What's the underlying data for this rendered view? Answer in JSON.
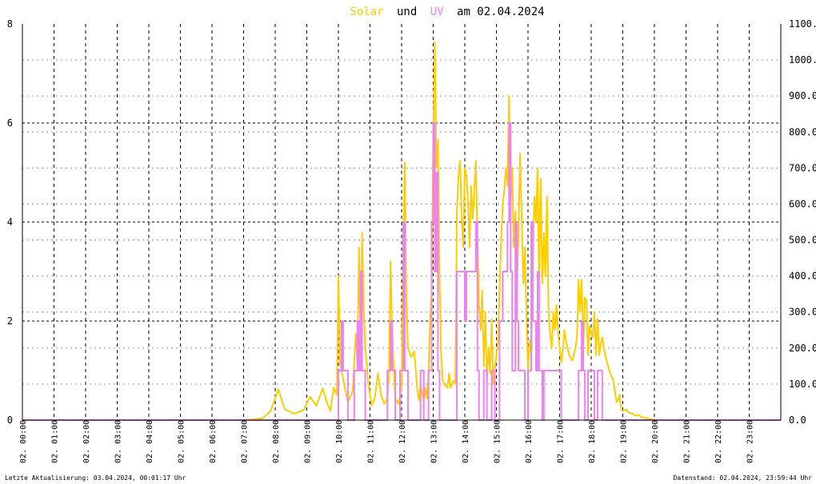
{
  "title": {
    "word1": "Solar",
    "word2": "und",
    "word3": "UV",
    "word4": "am 02.04.2024",
    "color_solar": "#ffcc00",
    "color_uv": "#ee82ee",
    "color_text": "#000000"
  },
  "footer": {
    "left": "Letzte Aktualisierung: 03.04.2024, 00:01:17 Uhr",
    "right": "Datenstand: 02.04.2024, 23:59:44 Uhr"
  },
  "chart_data": {
    "type": "line",
    "grid": true,
    "x_unit": "hour",
    "xlim": [
      0,
      24
    ],
    "x_ticks": [
      "02. 00:00",
      "02. 01:00",
      "02. 02:00",
      "02. 03:00",
      "02. 04:00",
      "02. 05:00",
      "02. 06:00",
      "02. 07:00",
      "02. 08:00",
      "02. 09:00",
      "02. 10:00",
      "02. 11:00",
      "02. 12:00",
      "02. 13:00",
      "02. 14:00",
      "02. 15:00",
      "02. 16:00",
      "02. 17:00",
      "02. 18:00",
      "02. 19:00",
      "02. 20:00",
      "02. 21:00",
      "02. 22:00",
      "02. 23:00"
    ],
    "y_left": {
      "lim": [
        0,
        8
      ],
      "ticks": [
        "0",
        "2",
        "4",
        "6",
        "8"
      ]
    },
    "y_right": {
      "lim": [
        0,
        1100
      ],
      "ticks": [
        "0.0",
        "100.0",
        "200.0",
        "300.0",
        "400.0",
        "500.0",
        "600.0",
        "700.0",
        "800.0",
        "900.0",
        "1000.0",
        "1100.0"
      ]
    },
    "series": [
      {
        "name": "Solar",
        "axis": "right",
        "color": "#ffcc00",
        "points": [
          [
            0,
            0
          ],
          [
            7.0,
            0
          ],
          [
            7.3,
            2
          ],
          [
            7.6,
            5
          ],
          [
            7.85,
            25
          ],
          [
            8.1,
            85
          ],
          [
            8.3,
            30
          ],
          [
            8.6,
            18
          ],
          [
            8.9,
            28
          ],
          [
            9.1,
            65
          ],
          [
            9.3,
            40
          ],
          [
            9.5,
            88
          ],
          [
            9.65,
            45
          ],
          [
            9.75,
            25
          ],
          [
            9.85,
            90
          ],
          [
            9.95,
            70
          ],
          [
            10.0,
            400
          ],
          [
            10.05,
            160
          ],
          [
            10.2,
            90
          ],
          [
            10.3,
            50
          ],
          [
            10.45,
            80
          ],
          [
            10.55,
            240
          ],
          [
            10.6,
            160
          ],
          [
            10.65,
            480
          ],
          [
            10.7,
            220
          ],
          [
            10.75,
            520
          ],
          [
            10.8,
            320
          ],
          [
            10.85,
            200
          ],
          [
            10.95,
            100
          ],
          [
            11.05,
            40
          ],
          [
            11.15,
            60
          ],
          [
            11.25,
            130
          ],
          [
            11.35,
            70
          ],
          [
            11.45,
            45
          ],
          [
            11.55,
            60
          ],
          [
            11.6,
            120
          ],
          [
            11.65,
            440
          ],
          [
            11.7,
            250
          ],
          [
            11.75,
            150
          ],
          [
            11.8,
            60
          ],
          [
            11.9,
            45
          ],
          [
            12.0,
            90
          ],
          [
            12.05,
            450
          ],
          [
            12.1,
            715
          ],
          [
            12.15,
            350
          ],
          [
            12.2,
            200
          ],
          [
            12.3,
            175
          ],
          [
            12.4,
            190
          ],
          [
            12.5,
            80
          ],
          [
            12.55,
            55
          ],
          [
            12.6,
            95
          ],
          [
            12.7,
            55
          ],
          [
            12.75,
            90
          ],
          [
            12.8,
            60
          ],
          [
            12.85,
            120
          ],
          [
            12.9,
            280
          ],
          [
            12.95,
            350
          ],
          [
            13.0,
            760
          ],
          [
            13.05,
            1050
          ],
          [
            13.1,
            700
          ],
          [
            13.15,
            780
          ],
          [
            13.2,
            400
          ],
          [
            13.25,
            180
          ],
          [
            13.3,
            110
          ],
          [
            13.35,
            100
          ],
          [
            13.45,
            90
          ],
          [
            13.5,
            130
          ],
          [
            13.55,
            90
          ],
          [
            13.65,
            110
          ],
          [
            13.7,
            100
          ],
          [
            13.75,
            580
          ],
          [
            13.8,
            680
          ],
          [
            13.85,
            720
          ],
          [
            13.9,
            560
          ],
          [
            13.95,
            480
          ],
          [
            14.0,
            700
          ],
          [
            14.05,
            680
          ],
          [
            14.1,
            600
          ],
          [
            14.15,
            480
          ],
          [
            14.2,
            650
          ],
          [
            14.25,
            560
          ],
          [
            14.3,
            640
          ],
          [
            14.35,
            720
          ],
          [
            14.4,
            500
          ],
          [
            14.45,
            320
          ],
          [
            14.5,
            250
          ],
          [
            14.55,
            360
          ],
          [
            14.6,
            150
          ],
          [
            14.65,
            300
          ],
          [
            14.7,
            100
          ],
          [
            14.75,
            200
          ],
          [
            14.8,
            130
          ],
          [
            14.85,
            280
          ],
          [
            14.9,
            100
          ],
          [
            15.0,
            180
          ],
          [
            15.05,
            220
          ],
          [
            15.1,
            360
          ],
          [
            15.15,
            500
          ],
          [
            15.2,
            600
          ],
          [
            15.25,
            640
          ],
          [
            15.3,
            700
          ],
          [
            15.35,
            650
          ],
          [
            15.4,
            900
          ],
          [
            15.45,
            600
          ],
          [
            15.5,
            700
          ],
          [
            15.55,
            480
          ],
          [
            15.6,
            580
          ],
          [
            15.65,
            360
          ],
          [
            15.7,
            520
          ],
          [
            15.75,
            740
          ],
          [
            15.8,
            560
          ],
          [
            15.85,
            380
          ],
          [
            15.9,
            480
          ],
          [
            15.95,
            300
          ],
          [
            16.0,
            140
          ],
          [
            16.05,
            220
          ],
          [
            16.1,
            180
          ],
          [
            16.15,
            420
          ],
          [
            16.2,
            620
          ],
          [
            16.25,
            550
          ],
          [
            16.3,
            700
          ],
          [
            16.35,
            400
          ],
          [
            16.4,
            670
          ],
          [
            16.45,
            380
          ],
          [
            16.5,
            520
          ],
          [
            16.55,
            400
          ],
          [
            16.6,
            620
          ],
          [
            16.65,
            300
          ],
          [
            16.7,
            240
          ],
          [
            16.75,
            200
          ],
          [
            16.8,
            300
          ],
          [
            16.85,
            250
          ],
          [
            16.9,
            320
          ],
          [
            16.95,
            250
          ],
          [
            17.0,
            200
          ],
          [
            17.05,
            160
          ],
          [
            17.1,
            190
          ],
          [
            17.15,
            250
          ],
          [
            17.2,
            220
          ],
          [
            17.3,
            180
          ],
          [
            17.4,
            165
          ],
          [
            17.5,
            200
          ],
          [
            17.55,
            230
          ],
          [
            17.6,
            390
          ],
          [
            17.65,
            300
          ],
          [
            17.7,
            390
          ],
          [
            17.75,
            200
          ],
          [
            17.8,
            340
          ],
          [
            17.85,
            330
          ],
          [
            17.9,
            180
          ],
          [
            17.95,
            260
          ],
          [
            18.0,
            240
          ],
          [
            18.05,
            230
          ],
          [
            18.1,
            300
          ],
          [
            18.15,
            180
          ],
          [
            18.2,
            280
          ],
          [
            18.25,
            180
          ],
          [
            18.3,
            210
          ],
          [
            18.35,
            230
          ],
          [
            18.4,
            200
          ],
          [
            18.5,
            160
          ],
          [
            18.6,
            130
          ],
          [
            18.7,
            110
          ],
          [
            18.75,
            80
          ],
          [
            18.8,
            50
          ],
          [
            18.85,
            55
          ],
          [
            18.9,
            70
          ],
          [
            18.95,
            30
          ],
          [
            19.0,
            25
          ],
          [
            19.1,
            30
          ],
          [
            19.2,
            20
          ],
          [
            19.3,
            18
          ],
          [
            19.4,
            12
          ],
          [
            19.5,
            15
          ],
          [
            19.6,
            8
          ],
          [
            19.8,
            4
          ],
          [
            20.0,
            1
          ],
          [
            20.1,
            0
          ],
          [
            24,
            0
          ]
        ]
      },
      {
        "name": "UV",
        "axis": "left",
        "color": "#ee82ee",
        "points": [
          [
            0,
            0
          ],
          [
            10.0,
            0
          ],
          [
            10.0,
            1
          ],
          [
            10.1,
            1
          ],
          [
            10.1,
            2
          ],
          [
            10.15,
            2
          ],
          [
            10.15,
            1
          ],
          [
            10.3,
            1
          ],
          [
            10.3,
            0
          ],
          [
            10.5,
            0
          ],
          [
            10.5,
            1
          ],
          [
            10.6,
            1
          ],
          [
            10.6,
            2
          ],
          [
            10.65,
            2
          ],
          [
            10.65,
            1
          ],
          [
            10.7,
            1
          ],
          [
            10.7,
            3
          ],
          [
            10.75,
            3
          ],
          [
            10.75,
            1
          ],
          [
            10.85,
            1
          ],
          [
            10.85,
            0
          ],
          [
            11.55,
            0
          ],
          [
            11.55,
            1
          ],
          [
            11.65,
            1
          ],
          [
            11.65,
            2
          ],
          [
            11.7,
            2
          ],
          [
            11.7,
            1
          ],
          [
            11.8,
            1
          ],
          [
            11.8,
            0
          ],
          [
            11.95,
            0
          ],
          [
            11.95,
            1
          ],
          [
            12.05,
            1
          ],
          [
            12.05,
            4
          ],
          [
            12.1,
            4
          ],
          [
            12.1,
            1
          ],
          [
            12.2,
            1
          ],
          [
            12.2,
            0
          ],
          [
            12.6,
            0
          ],
          [
            12.6,
            1
          ],
          [
            12.7,
            1
          ],
          [
            12.7,
            0
          ],
          [
            12.85,
            0
          ],
          [
            12.85,
            1
          ],
          [
            12.95,
            1
          ],
          [
            12.95,
            4
          ],
          [
            13.0,
            4
          ],
          [
            13.0,
            6
          ],
          [
            13.05,
            6
          ],
          [
            13.05,
            3
          ],
          [
            13.1,
            3
          ],
          [
            13.1,
            5
          ],
          [
            13.15,
            5
          ],
          [
            13.15,
            1
          ],
          [
            13.2,
            1
          ],
          [
            13.2,
            0
          ],
          [
            13.75,
            0
          ],
          [
            13.75,
            3
          ],
          [
            14.0,
            3
          ],
          [
            14.0,
            2
          ],
          [
            14.05,
            2
          ],
          [
            14.05,
            3
          ],
          [
            14.35,
            3
          ],
          [
            14.35,
            4
          ],
          [
            14.4,
            4
          ],
          [
            14.4,
            1
          ],
          [
            14.45,
            1
          ],
          [
            14.45,
            0
          ],
          [
            14.6,
            0
          ],
          [
            14.6,
            1
          ],
          [
            14.7,
            1
          ],
          [
            14.7,
            0
          ],
          [
            14.85,
            0
          ],
          [
            14.85,
            1
          ],
          [
            14.95,
            1
          ],
          [
            14.95,
            0
          ],
          [
            15.1,
            0
          ],
          [
            15.1,
            2
          ],
          [
            15.2,
            2
          ],
          [
            15.2,
            3
          ],
          [
            15.35,
            3
          ],
          [
            15.35,
            4
          ],
          [
            15.4,
            4
          ],
          [
            15.4,
            6
          ],
          [
            15.45,
            6
          ],
          [
            15.45,
            3
          ],
          [
            15.5,
            3
          ],
          [
            15.5,
            1
          ],
          [
            15.6,
            1
          ],
          [
            15.6,
            4
          ],
          [
            15.65,
            4
          ],
          [
            15.65,
            2
          ],
          [
            15.7,
            2
          ],
          [
            15.7,
            1
          ],
          [
            15.9,
            1
          ],
          [
            15.9,
            0
          ],
          [
            16.0,
            0
          ],
          [
            16.0,
            1
          ],
          [
            16.1,
            1
          ],
          [
            16.1,
            4
          ],
          [
            16.15,
            4
          ],
          [
            16.15,
            2
          ],
          [
            16.25,
            2
          ],
          [
            16.25,
            1
          ],
          [
            16.3,
            1
          ],
          [
            16.3,
            3
          ],
          [
            16.35,
            3
          ],
          [
            16.35,
            1
          ],
          [
            16.45,
            1
          ],
          [
            16.45,
            0
          ],
          [
            16.5,
            0
          ],
          [
            16.5,
            1
          ],
          [
            17.05,
            1
          ],
          [
            17.05,
            0
          ],
          [
            17.6,
            0
          ],
          [
            17.6,
            1
          ],
          [
            17.7,
            1
          ],
          [
            17.7,
            2
          ],
          [
            17.75,
            2
          ],
          [
            17.75,
            1
          ],
          [
            17.8,
            1
          ],
          [
            17.8,
            0
          ],
          [
            17.9,
            0
          ],
          [
            17.9,
            1
          ],
          [
            18.1,
            1
          ],
          [
            18.1,
            0
          ],
          [
            18.2,
            0
          ],
          [
            18.2,
            1
          ],
          [
            18.35,
            1
          ],
          [
            18.35,
            0
          ],
          [
            24,
            0
          ]
        ]
      }
    ]
  }
}
